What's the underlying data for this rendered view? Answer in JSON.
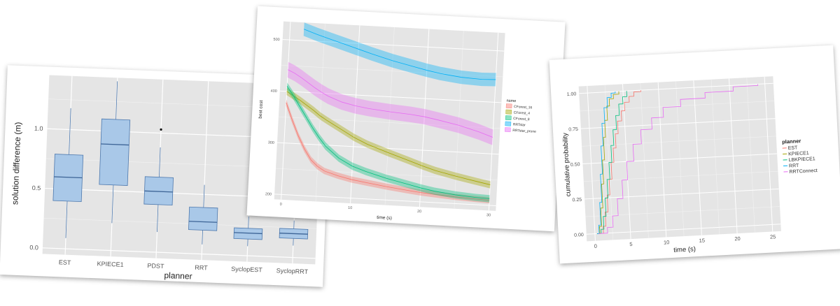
{
  "chart_data": [
    {
      "type": "box",
      "xlabel": "planner",
      "ylabel": "solution difference (m)",
      "ylim": [
        -0.05,
        1.45
      ],
      "yticks": [
        0.0,
        0.5,
        1.0
      ],
      "ytick_labels": [
        "0.0",
        "0.5",
        "1.0"
      ],
      "grid": true,
      "fill": "#a9c8e8",
      "stroke": "#4d78ad",
      "categories": [
        "EST",
        "KPIECE1",
        "PDST",
        "RRT",
        "SyclopEST",
        "SyclopRRT"
      ],
      "boxes": [
        {
          "min": 0.09,
          "q1": 0.4,
          "median": 0.6,
          "q3": 0.79,
          "max": 1.18
        },
        {
          "min": 0.23,
          "q1": 0.55,
          "median": 0.89,
          "q3": 1.1,
          "max": 1.42
        },
        {
          "min": 0.17,
          "q1": 0.4,
          "median": 0.51,
          "q3": 0.63,
          "max": 0.88,
          "outliers": [
            1.03
          ]
        },
        {
          "min": 0.08,
          "q1": 0.2,
          "median": 0.27,
          "q3": 0.39,
          "max": 0.58
        },
        {
          "min": 0.08,
          "q1": 0.14,
          "median": 0.19,
          "q3": 0.23,
          "max": 0.33
        },
        {
          "min": 0.1,
          "q1": 0.16,
          "median": 0.2,
          "q3": 0.24,
          "max": 0.31
        }
      ]
    },
    {
      "type": "line",
      "xlabel": "time (s)",
      "ylabel": "best cost",
      "xlim": [
        -1,
        31
      ],
      "ylim": [
        190,
        535
      ],
      "xticks": [
        0,
        10,
        20,
        30
      ],
      "yticks": [
        200,
        300,
        400,
        500
      ],
      "grid": true,
      "legend_title": "name",
      "legend_position": "right",
      "x": [
        0,
        1,
        2,
        3,
        4,
        5,
        6,
        8,
        10,
        12,
        15,
        18,
        20,
        22,
        25,
        28,
        30
      ],
      "series": [
        {
          "name": "CForest_16",
          "color": "#f8766d",
          "band": 6,
          "values": [
            378,
            345,
            315,
            290,
            270,
            258,
            250,
            242,
            236,
            232,
            226,
            221,
            218,
            216,
            213,
            211,
            210
          ]
        },
        {
          "name": "CForest_4",
          "color": "#a3a500",
          "band": 7,
          "values": [
            400,
            392,
            384,
            375,
            366,
            356,
            348,
            333,
            318,
            306,
            292,
            279,
            270,
            262,
            253,
            245,
            240
          ]
        },
        {
          "name": "CForest_8",
          "color": "#00bf7d",
          "band": 7,
          "values": [
            410,
            392,
            372,
            352,
            332,
            314,
            298,
            276,
            262,
            253,
            242,
            233,
            227,
            222,
            217,
            214,
            213
          ]
        },
        {
          "name": "RRTstar",
          "color": "#00b0f6",
          "band": 13,
          "values": null,
          "x_start": 2,
          "sparse": [
            [
              2,
              522
            ],
            [
              4,
              513
            ],
            [
              6,
              505
            ],
            [
              8,
              497
            ],
            [
              10,
              489
            ],
            [
              12,
              481
            ],
            [
              15,
              470
            ],
            [
              18,
              461
            ],
            [
              20,
              455
            ],
            [
              22,
              450
            ],
            [
              25,
              445
            ],
            [
              28,
              443
            ],
            [
              30,
              444
            ]
          ]
        },
        {
          "name": "RRTstar_prune",
          "color": "#e76bf3",
          "band": 15,
          "values": [
            442,
            436,
            428,
            419,
            410,
            402,
            395,
            385,
            379,
            375,
            371,
            368,
            365,
            360,
            352,
            341,
            332
          ]
        }
      ]
    },
    {
      "type": "step",
      "xlabel": "time (s)",
      "ylabel": "cumulative probability",
      "xlim": [
        -1.2,
        26.2
      ],
      "ylim": [
        -0.05,
        1.05
      ],
      "xticks": [
        0,
        5,
        10,
        15,
        20,
        25
      ],
      "yticks": [
        0.0,
        0.25,
        0.5,
        0.75,
        1.0
      ],
      "ytick_labels": [
        "0.00",
        "0.25",
        "0.50",
        "0.75",
        "1.00"
      ],
      "grid": true,
      "legend_title": "planner",
      "legend_position": "right",
      "series": [
        {
          "name": "EST",
          "color": "#f8766d",
          "points": [
            [
              0.3,
              0
            ],
            [
              1.2,
              0.05
            ],
            [
              1.6,
              0.15
            ],
            [
              2.0,
              0.27
            ],
            [
              2.4,
              0.38
            ],
            [
              2.8,
              0.5
            ],
            [
              3.2,
              0.6
            ],
            [
              3.6,
              0.7
            ],
            [
              4.0,
              0.79
            ],
            [
              4.6,
              0.86
            ],
            [
              5.1,
              0.92
            ],
            [
              5.8,
              0.96
            ],
            [
              6.5,
              0.99
            ],
            [
              7.5,
              1.0
            ]
          ]
        },
        {
          "name": "KPIECE1",
          "color": "#a3a500",
          "points": [
            [
              0.3,
              0
            ],
            [
              0.7,
              0.05
            ],
            [
              1.0,
              0.18
            ],
            [
              1.3,
              0.35
            ],
            [
              1.6,
              0.52
            ],
            [
              1.9,
              0.68
            ],
            [
              2.2,
              0.8
            ],
            [
              2.6,
              0.9
            ],
            [
              3.0,
              0.95
            ],
            [
              3.6,
              0.98
            ],
            [
              4.4,
              1.0
            ]
          ]
        },
        {
          "name": "LBKPIECE1",
          "color": "#00bf7d",
          "points": [
            [
              0.3,
              0
            ],
            [
              0.9,
              0.03
            ],
            [
              1.3,
              0.12
            ],
            [
              1.7,
              0.25
            ],
            [
              2.1,
              0.38
            ],
            [
              2.5,
              0.5
            ],
            [
              2.9,
              0.62
            ],
            [
              3.3,
              0.73
            ],
            [
              3.8,
              0.83
            ],
            [
              4.3,
              0.91
            ],
            [
              4.9,
              0.96
            ],
            [
              5.5,
              1.0
            ]
          ]
        },
        {
          "name": "RRT",
          "color": "#00b0f6",
          "points": [
            [
              0.3,
              0
            ],
            [
              0.6,
              0.06
            ],
            [
              0.9,
              0.22
            ],
            [
              1.2,
              0.42
            ],
            [
              1.5,
              0.62
            ],
            [
              1.8,
              0.78
            ],
            [
              2.2,
              0.89
            ],
            [
              2.7,
              0.96
            ],
            [
              3.3,
              0.99
            ],
            [
              3.9,
              1.0
            ]
          ]
        },
        {
          "name": "RRTConnect",
          "color": "#e76bf3",
          "points": [
            [
              0.5,
              0
            ],
            [
              1.8,
              0.04
            ],
            [
              2.6,
              0.12
            ],
            [
              3.4,
              0.24
            ],
            [
              4.2,
              0.37
            ],
            [
              5.0,
              0.5
            ],
            [
              6.0,
              0.62
            ],
            [
              7.2,
              0.72
            ],
            [
              8.8,
              0.8
            ],
            [
              10.5,
              0.87
            ],
            [
              13.0,
              0.92
            ],
            [
              16.5,
              0.96
            ],
            [
              20.5,
              0.99
            ],
            [
              24.0,
              1.0
            ]
          ]
        }
      ]
    }
  ]
}
